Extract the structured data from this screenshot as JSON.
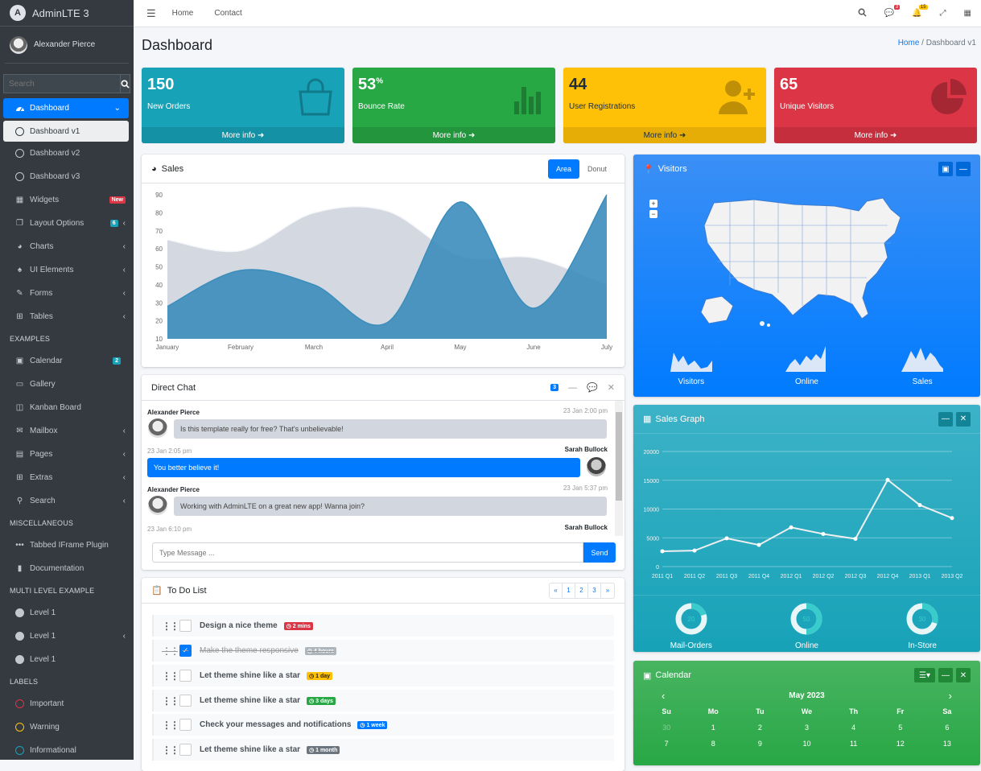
{
  "brand": {
    "name": "AdminLTE 3"
  },
  "user": {
    "name": "Alexander Pierce"
  },
  "sidebar": {
    "search_placeholder": "Search",
    "dashboard": "Dashboard",
    "sub": [
      "Dashboard v1",
      "Dashboard v2",
      "Dashboard v3"
    ],
    "items": [
      {
        "label": "Widgets",
        "badge": "New",
        "badge_color": "#dc3545"
      },
      {
        "label": "Layout Options",
        "badge": "6",
        "badge_color": "#17a2b8"
      },
      {
        "label": "Charts"
      },
      {
        "label": "UI Elements"
      },
      {
        "label": "Forms"
      },
      {
        "label": "Tables"
      }
    ],
    "header_examples": "EXAMPLES",
    "examples": [
      {
        "label": "Calendar",
        "badge": "2"
      },
      {
        "label": "Gallery"
      },
      {
        "label": "Kanban Board"
      },
      {
        "label": "Mailbox"
      },
      {
        "label": "Pages"
      },
      {
        "label": "Extras"
      },
      {
        "label": "Search"
      }
    ],
    "header_misc": "MISCELLANEOUS",
    "misc": [
      "Tabbed IFrame Plugin",
      "Documentation"
    ],
    "header_multi": "MULTI LEVEL EXAMPLE",
    "levels": [
      "Level 1",
      "Level 1",
      "Level 1"
    ],
    "header_labels": "LABELS",
    "labels": [
      {
        "label": "Important",
        "color": "#dc3545"
      },
      {
        "label": "Warning",
        "color": "#ffc107"
      },
      {
        "label": "Informational",
        "color": "#17a2b8"
      }
    ]
  },
  "topbar": {
    "home": "Home",
    "contact": "Contact",
    "msg_badge": "3",
    "notif_badge": "15"
  },
  "page": {
    "title": "Dashboard",
    "crumb_home": "Home",
    "crumb_current": "Dashboard v1"
  },
  "boxes": [
    {
      "value": "150",
      "sup": "",
      "label": "New Orders",
      "color": "#17a2b8",
      "icon": "bag-icon"
    },
    {
      "value": "53",
      "sup": "%",
      "label": "Bounce Rate",
      "color": "#28a745",
      "icon": "bar-chart-icon"
    },
    {
      "value": "44",
      "sup": "",
      "label": "User Registrations",
      "color": "#ffc107",
      "icon": "user-plus-icon"
    },
    {
      "value": "65",
      "sup": "",
      "label": "Unique Visitors",
      "color": "#dc3545",
      "icon": "pie-chart-icon"
    }
  ],
  "more_info": "More info",
  "sales": {
    "title": "Sales",
    "tab_area": "Area",
    "tab_donut": "Donut"
  },
  "chat": {
    "title": "Direct Chat",
    "count": "3",
    "messages": [
      {
        "name": "Alexander Pierce",
        "time": "23 Jan 2:00 pm",
        "text": "Is this template really for free? That's unbelievable!"
      },
      {
        "name": "Sarah Bullock",
        "time": "23 Jan 2:05 pm",
        "text": "You better believe it!"
      },
      {
        "name": "Alexander Pierce",
        "time": "23 Jan 5:37 pm",
        "text": "Working with AdminLTE on a great new app! Wanna join?"
      },
      {
        "name": "Sarah Bullock",
        "time": "23 Jan 6:10 pm",
        "text": ""
      }
    ],
    "placeholder": "Type Message ...",
    "send": "Send"
  },
  "todo": {
    "title": "To Do List",
    "pages": [
      "«",
      "1",
      "2",
      "3",
      "»"
    ],
    "items": [
      {
        "text": "Design a nice theme",
        "tag": "2 mins",
        "color": "#dc3545",
        "done": false
      },
      {
        "text": "Make the theme responsive",
        "tag": "4 hours",
        "color": "#adb5bd",
        "done": true
      },
      {
        "text": "Let theme shine like a star",
        "tag": "1 day",
        "color": "#ffc107",
        "done": false
      },
      {
        "text": "Let theme shine like a star",
        "tag": "3 days",
        "color": "#28a745",
        "done": false
      },
      {
        "text": "Check your messages and notifications",
        "tag": "1 week",
        "color": "#007bff",
        "done": false
      },
      {
        "text": "Let theme shine like a star",
        "tag": "1 month",
        "color": "#6c757d",
        "done": false
      }
    ]
  },
  "visitors": {
    "title": "Visitors",
    "sparks": [
      "Visitors",
      "Online",
      "Sales"
    ]
  },
  "graph": {
    "title": "Sales Graph",
    "knobs": [
      {
        "label": "Mail-Orders",
        "value": "20",
        "fraction": 0.2
      },
      {
        "label": "Online",
        "value": "50",
        "fraction": 0.5
      },
      {
        "label": "In-Store",
        "value": "30",
        "fraction": 0.3
      }
    ]
  },
  "calendar": {
    "title": "Calendar",
    "month": "May 2023",
    "days": [
      "Su",
      "Mo",
      "Tu",
      "We",
      "Th",
      "Fr",
      "Sa"
    ],
    "week1": [
      "30",
      "1",
      "2",
      "3",
      "4",
      "5",
      "6"
    ],
    "week2": [
      "7",
      "8",
      "9",
      "10",
      "11",
      "12",
      "13"
    ]
  },
  "chart_data": [
    {
      "type": "area",
      "categories": [
        "January",
        "February",
        "March",
        "April",
        "May",
        "June",
        "July"
      ],
      "ylim": [
        10,
        90
      ],
      "yticks": [
        "90",
        "80",
        "70",
        "60",
        "50",
        "40",
        "30",
        "20",
        "10"
      ],
      "series": [
        {
          "values": [
            65,
            59,
            80,
            81,
            56,
            55,
            40
          ],
          "color": "#d2d6de"
        },
        {
          "values": [
            28,
            48,
            40,
            19,
            86,
            27,
            90
          ],
          "color": "#3c8dbc"
        }
      ]
    },
    {
      "type": "line",
      "categories": [
        "2011 Q1",
        "2011 Q2",
        "2011 Q3",
        "2011 Q4",
        "2012 Q1",
        "2012 Q2",
        "2012 Q3",
        "2012 Q4",
        "2013 Q1",
        "2013 Q2"
      ],
      "ylim": [
        0,
        20000
      ],
      "yticks": [
        "20000",
        "15000",
        "10000",
        "5000",
        "0"
      ],
      "series": [
        {
          "values": [
            2666,
            2778,
            4912,
            3767,
            6810,
            5670,
            4820,
            15073,
            10687,
            8432
          ]
        }
      ]
    }
  ]
}
